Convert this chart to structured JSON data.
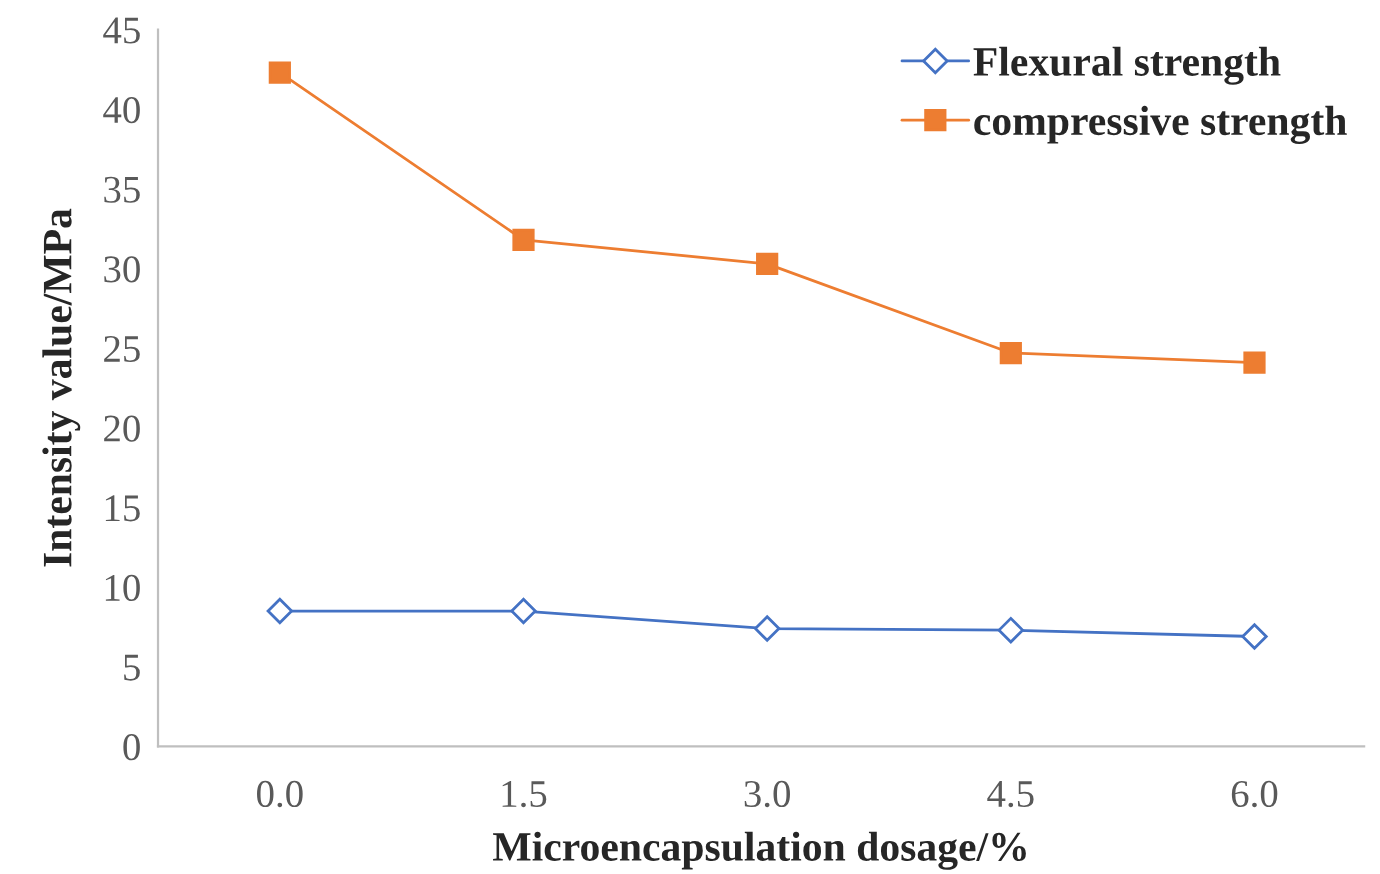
{
  "chart_data": {
    "type": "line",
    "xlabel": "Microencapsulation dosage/%",
    "ylabel": "Intensity value/MPa",
    "categories": [
      "0.0",
      "1.5",
      "3.0",
      "4.5",
      "6.0"
    ],
    "series": [
      {
        "name": "Flexural strength",
        "color": "#4472c4",
        "marker": "diamond",
        "values": [
          8.5,
          8.5,
          7.4,
          7.3,
          6.9
        ]
      },
      {
        "name": "compressive strength",
        "color": "#ed7d31",
        "marker": "square",
        "values": [
          42.3,
          31.8,
          30.3,
          24.7,
          24.1
        ]
      }
    ],
    "ylim": [
      0,
      45
    ],
    "yticks": [
      0,
      5,
      10,
      15,
      20,
      25,
      30,
      35,
      40,
      45
    ],
    "grid": false,
    "legend": "top right",
    "line_style": "solid"
  }
}
